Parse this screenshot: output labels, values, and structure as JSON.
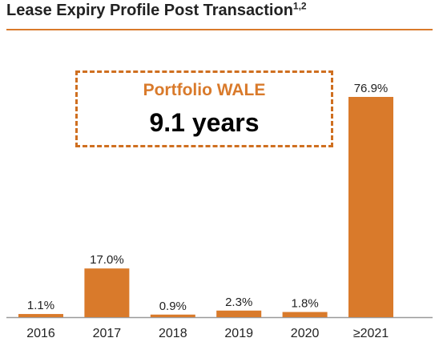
{
  "header": {
    "title": "Lease Expiry Profile Post Transaction",
    "footnote": "1,2"
  },
  "callout": {
    "label": "Portfolio WALE",
    "value": "9.1 years"
  },
  "colors": {
    "bar": "#d97a2b",
    "accent": "#cf6f20",
    "text": "#222222"
  },
  "chart_data": {
    "type": "bar",
    "title": "Lease Expiry Profile Post Transaction",
    "categories": [
      "2016",
      "2017",
      "2018",
      "2019",
      "2020",
      "≥2021"
    ],
    "values": [
      1.1,
      17.0,
      0.9,
      2.3,
      1.8,
      76.9
    ],
    "data_labels": [
      "1.1%",
      "17.0%",
      "0.9%",
      "2.3%",
      "1.8%",
      "76.9%"
    ],
    "unit": "%",
    "ylim": [
      0,
      76.9
    ],
    "grid": false,
    "legend": "none"
  }
}
